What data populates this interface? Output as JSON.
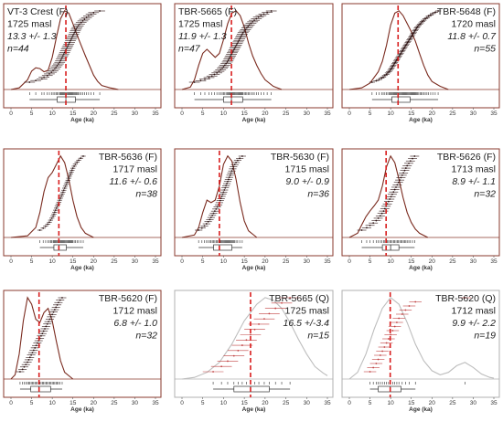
{
  "chart_data": {
    "type": "scatter",
    "xlabel": "Age (ka)",
    "x_ticks": [
      0,
      5,
      10,
      15,
      20,
      25,
      30,
      35
    ],
    "xlim": [
      0,
      35
    ],
    "panels": [
      {
        "sample": "VT-3 Crest (F)",
        "elevation": "1725 masl",
        "age": "13.3 +/- 1.3",
        "n": "n=44",
        "mean": 13.3,
        "curve": [
          [
            0,
            0
          ],
          [
            2,
            0.02
          ],
          [
            4,
            0.12
          ],
          [
            5,
            0.23
          ],
          [
            6,
            0.27
          ],
          [
            7,
            0.26
          ],
          [
            8,
            0.22
          ],
          [
            9,
            0.24
          ],
          [
            10,
            0.4
          ],
          [
            11,
            0.65
          ],
          [
            12,
            0.88
          ],
          [
            13,
            0.98
          ],
          [
            14,
            0.95
          ],
          [
            15,
            0.82
          ],
          [
            16,
            0.68
          ],
          [
            17,
            0.55
          ],
          [
            18,
            0.42
          ],
          [
            19,
            0.3
          ],
          [
            20,
            0.18
          ],
          [
            21,
            0.1
          ],
          [
            22,
            0.05
          ],
          [
            24,
            0.02
          ],
          [
            26,
            0
          ]
        ],
        "ages": [
          4.5,
          6.0,
          7.5,
          8.0,
          8.8,
          9.3,
          9.8,
          10.2,
          10.6,
          10.9,
          11.2,
          11.5,
          11.8,
          12.0,
          12.2,
          12.4,
          12.6,
          12.8,
          13.0,
          13.2,
          13.4,
          13.6,
          13.8,
          14.0,
          14.2,
          14.4,
          14.6,
          14.8,
          15.0,
          15.2,
          15.4,
          15.6,
          15.8,
          16.0,
          16.3,
          16.6,
          17.0,
          17.4,
          17.8,
          18.3,
          18.8,
          19.4,
          20.0,
          21.5
        ],
        "err": 1.3,
        "box": [
          11.2,
          13.3,
          15.6
        ],
        "whisk": [
          4.5,
          21.5
        ]
      },
      {
        "sample": "TBR-5665 (F)",
        "elevation": "1725 masl",
        "age": "11.9 +/- 1.3",
        "n": "n=47",
        "mean": 11.9,
        "curve": [
          [
            0,
            0
          ],
          [
            2,
            0.03
          ],
          [
            3,
            0.12
          ],
          [
            4,
            0.3
          ],
          [
            5,
            0.45
          ],
          [
            6,
            0.5
          ],
          [
            7,
            0.45
          ],
          [
            8,
            0.4
          ],
          [
            9,
            0.45
          ],
          [
            10,
            0.62
          ],
          [
            11,
            0.82
          ],
          [
            12,
            0.95
          ],
          [
            13,
            0.98
          ],
          [
            14,
            0.92
          ],
          [
            15,
            0.78
          ],
          [
            16,
            0.58
          ],
          [
            17,
            0.42
          ],
          [
            18,
            0.3
          ],
          [
            19,
            0.2
          ],
          [
            20,
            0.12
          ],
          [
            22,
            0.04
          ],
          [
            24,
            0
          ]
        ],
        "ages": [
          3.0,
          4.5,
          5.5,
          6.5,
          7.2,
          7.8,
          8.4,
          8.9,
          9.3,
          9.7,
          10.0,
          10.3,
          10.6,
          10.9,
          11.1,
          11.3,
          11.5,
          11.7,
          11.9,
          12.1,
          12.3,
          12.5,
          12.7,
          12.9,
          13.1,
          13.3,
          13.5,
          13.7,
          13.9,
          14.1,
          14.3,
          14.5,
          14.7,
          15.0,
          15.3,
          15.6,
          15.9,
          16.2,
          16.6,
          17.0,
          17.4,
          17.9,
          18.4,
          19.0,
          19.7,
          20.5,
          21.5
        ],
        "err": 1.3,
        "box": [
          10.0,
          11.9,
          14.6
        ],
        "whisk": [
          3.0,
          21.5
        ]
      },
      {
        "sample": "TBR-5648 (F)",
        "elevation": "1720 masl",
        "age": "11.8 +/- 0.7",
        "n": "n=55",
        "mean": 11.8,
        "curve": [
          [
            0,
            0
          ],
          [
            3,
            0.02
          ],
          [
            5,
            0.08
          ],
          [
            7,
            0.22
          ],
          [
            8,
            0.35
          ],
          [
            9,
            0.55
          ],
          [
            10,
            0.8
          ],
          [
            11,
            0.95
          ],
          [
            12,
            0.98
          ],
          [
            13,
            0.92
          ],
          [
            14,
            0.82
          ],
          [
            15,
            0.72
          ],
          [
            16,
            0.6
          ],
          [
            17,
            0.45
          ],
          [
            18,
            0.3
          ],
          [
            19,
            0.18
          ],
          [
            20,
            0.1
          ],
          [
            22,
            0.04
          ],
          [
            24,
            0
          ]
        ],
        "ages": [
          5.5,
          6.5,
          7.2,
          7.8,
          8.2,
          8.6,
          9.0,
          9.3,
          9.6,
          9.9,
          10.1,
          10.3,
          10.5,
          10.7,
          10.9,
          11.1,
          11.3,
          11.5,
          11.7,
          11.9,
          12.1,
          12.3,
          12.5,
          12.7,
          12.9,
          13.1,
          13.3,
          13.5,
          13.7,
          13.9,
          14.1,
          14.3,
          14.5,
          14.7,
          14.9,
          15.1,
          15.3,
          15.5,
          15.7,
          15.9,
          16.1,
          16.3,
          16.5,
          16.8,
          17.1,
          17.4,
          17.7,
          18.0,
          18.4,
          18.8,
          19.2,
          19.7,
          20.2,
          20.8,
          21.5
        ],
        "err": 0.7,
        "box": [
          10.3,
          11.8,
          14.7
        ],
        "whisk": [
          5.5,
          21.5
        ]
      },
      {
        "sample": "TBR-5636 (F)",
        "elevation": "1717 masl",
        "age": "11.6 +/- 0.6",
        "n": "n=38",
        "mean": 11.6,
        "curve": [
          [
            0,
            0
          ],
          [
            4,
            0.02
          ],
          [
            6,
            0.12
          ],
          [
            7,
            0.3
          ],
          [
            8,
            0.55
          ],
          [
            9,
            0.72
          ],
          [
            10,
            0.78
          ],
          [
            11,
            0.88
          ],
          [
            12,
            0.98
          ],
          [
            13,
            0.9
          ],
          [
            14,
            0.7
          ],
          [
            15,
            0.45
          ],
          [
            16,
            0.25
          ],
          [
            17,
            0.12
          ],
          [
            18,
            0.05
          ],
          [
            20,
            0
          ]
        ],
        "ages": [
          7.0,
          7.8,
          8.4,
          8.9,
          9.3,
          9.6,
          9.9,
          10.2,
          10.4,
          10.6,
          10.8,
          11.0,
          11.2,
          11.4,
          11.6,
          11.8,
          12.0,
          12.2,
          12.4,
          12.6,
          12.8,
          13.0,
          13.2,
          13.4,
          13.6,
          13.8,
          14.0,
          14.2,
          14.4,
          14.6,
          14.8,
          15.0,
          15.3,
          15.6,
          16.0,
          16.4,
          16.9,
          17.5
        ],
        "err": 0.6,
        "box": [
          10.4,
          11.6,
          13.4
        ],
        "whisk": [
          7.0,
          17.5
        ]
      },
      {
        "sample": "TBR-5630 (F)",
        "elevation": "1715 masl",
        "age": "9.0 +/- 0.9",
        "n": "n=36",
        "mean": 9.0,
        "curve": [
          [
            0,
            0
          ],
          [
            3,
            0.03
          ],
          [
            4,
            0.12
          ],
          [
            5,
            0.3
          ],
          [
            6,
            0.45
          ],
          [
            7,
            0.42
          ],
          [
            8,
            0.45
          ],
          [
            9,
            0.62
          ],
          [
            10,
            0.88
          ],
          [
            11,
            0.98
          ],
          [
            12,
            0.92
          ],
          [
            13,
            0.7
          ],
          [
            14,
            0.42
          ],
          [
            15,
            0.2
          ],
          [
            16,
            0.08
          ],
          [
            18,
            0
          ]
        ],
        "ages": [
          4.0,
          4.8,
          5.4,
          5.9,
          6.3,
          6.7,
          7.0,
          7.3,
          7.6,
          7.9,
          8.2,
          8.5,
          8.8,
          9.0,
          9.2,
          9.4,
          9.6,
          9.8,
          10.0,
          10.2,
          10.4,
          10.6,
          10.8,
          11.0,
          11.2,
          11.4,
          11.6,
          11.8,
          12.0,
          12.2,
          12.4,
          12.7,
          13.0,
          13.4,
          13.9,
          14.5
        ],
        "err": 0.9,
        "box": [
          7.6,
          9.0,
          12.0
        ],
        "whisk": [
          4.0,
          14.5
        ]
      },
      {
        "sample": "TBR-5626 (F)",
        "elevation": "1713 masl",
        "age": "8.9 +/- 1.1",
        "n": "n=32",
        "mean": 8.9,
        "curve": [
          [
            0,
            0
          ],
          [
            2,
            0.05
          ],
          [
            3,
            0.15
          ],
          [
            4,
            0.25
          ],
          [
            5,
            0.32
          ],
          [
            6,
            0.38
          ],
          [
            7,
            0.45
          ],
          [
            8,
            0.62
          ],
          [
            9,
            0.85
          ],
          [
            10,
            0.98
          ],
          [
            11,
            0.9
          ],
          [
            12,
            0.7
          ],
          [
            13,
            0.48
          ],
          [
            14,
            0.3
          ],
          [
            15,
            0.18
          ],
          [
            16,
            0.1
          ],
          [
            17,
            0.05
          ],
          [
            19,
            0
          ]
        ],
        "ages": [
          3.0,
          4.2,
          5.0,
          5.8,
          6.5,
          7.0,
          7.5,
          7.9,
          8.3,
          8.6,
          8.9,
          9.2,
          9.5,
          9.8,
          10.1,
          10.4,
          10.7,
          11.0,
          11.3,
          11.6,
          11.9,
          12.2,
          12.5,
          12.8,
          13.1,
          13.4,
          13.7,
          14.0,
          14.4,
          14.8,
          15.3,
          15.8
        ],
        "err": 1.1,
        "box": [
          8.0,
          10.0,
          12.0
        ],
        "whisk": [
          3.0,
          15.8
        ]
      },
      {
        "sample": "TBR-5620 (F)",
        "elevation": "1712 masl",
        "age": "6.8 +/- 1.0",
        "n": "n=32",
        "mean": 6.8,
        "curve": [
          [
            0,
            0
          ],
          [
            1,
            0.05
          ],
          [
            2,
            0.3
          ],
          [
            3,
            0.7
          ],
          [
            4,
            0.98
          ],
          [
            5,
            0.9
          ],
          [
            6,
            0.72
          ],
          [
            7,
            0.68
          ],
          [
            8,
            0.8
          ],
          [
            9,
            0.85
          ],
          [
            10,
            0.7
          ],
          [
            11,
            0.45
          ],
          [
            12,
            0.22
          ],
          [
            13,
            0.08
          ],
          [
            15,
            0
          ]
        ],
        "ages": [
          2.2,
          2.8,
          3.2,
          3.6,
          4.0,
          4.3,
          4.6,
          4.9,
          5.2,
          5.5,
          5.8,
          6.1,
          6.4,
          6.7,
          7.0,
          7.3,
          7.6,
          7.9,
          8.2,
          8.5,
          8.8,
          9.1,
          9.4,
          9.7,
          10.0,
          10.3,
          10.6,
          10.9,
          11.2,
          11.5,
          11.9,
          12.4
        ],
        "err": 1.0,
        "box": [
          4.8,
          6.8,
          9.6
        ],
        "whisk": [
          2.2,
          12.4
        ]
      },
      {
        "sample": "TBR-5665 (Q)",
        "elevation": "1725 masl",
        "age": "16.5 +/-3.4",
        "n": "n=15",
        "mean": 16.5,
        "curve": [
          [
            0,
            0
          ],
          [
            3,
            0.02
          ],
          [
            6,
            0.08
          ],
          [
            9,
            0.2
          ],
          [
            12,
            0.42
          ],
          [
            15,
            0.7
          ],
          [
            18,
            0.9
          ],
          [
            20,
            0.98
          ],
          [
            22,
            0.95
          ],
          [
            24,
            0.85
          ],
          [
            26,
            0.68
          ],
          [
            28,
            0.48
          ],
          [
            30,
            0.3
          ],
          [
            32,
            0.15
          ],
          [
            34,
            0.07
          ],
          [
            35,
            0.04
          ]
        ],
        "ages": [
          7.5,
          9.5,
          11.0,
          12.5,
          13.5,
          14.5,
          15.5,
          16.5,
          17.5,
          18.5,
          19.8,
          21.0,
          22.5,
          24.0,
          26.0
        ],
        "err": 2.5,
        "box": [
          12.5,
          16.5,
          21.0
        ],
        "whisk": [
          7.5,
          26.0
        ]
      },
      {
        "sample": "TBR-5620 (Q)",
        "elevation": "1712 masl",
        "age": "9.9 +/- 2.2",
        "n": "n=19",
        "mean": 9.9,
        "curve": [
          [
            0,
            0
          ],
          [
            2,
            0.08
          ],
          [
            4,
            0.3
          ],
          [
            6,
            0.6
          ],
          [
            8,
            0.85
          ],
          [
            10,
            0.98
          ],
          [
            12,
            0.9
          ],
          [
            14,
            0.68
          ],
          [
            16,
            0.42
          ],
          [
            18,
            0.22
          ],
          [
            20,
            0.1
          ],
          [
            22,
            0.05
          ],
          [
            24,
            0.08
          ],
          [
            26,
            0.16
          ],
          [
            28,
            0.2
          ],
          [
            30,
            0.14
          ],
          [
            32,
            0.06
          ],
          [
            34,
            0.02
          ],
          [
            35,
            0.01
          ]
        ],
        "ages": [
          5.0,
          5.8,
          6.5,
          7.0,
          7.5,
          8.0,
          8.5,
          9.0,
          9.5,
          10.0,
          10.5,
          11.0,
          11.5,
          12.0,
          12.8,
          13.6,
          14.5,
          16.0,
          28.0
        ],
        "err": 1.5,
        "box": [
          7.0,
          9.9,
          12.5
        ],
        "whisk": [
          5.0,
          16.0
        ]
      }
    ]
  },
  "colors": {
    "curve_f": "#7a2a1e",
    "curve_q": "#bdbdbd",
    "mean_line": "#d81e1e",
    "points": "#2a1010",
    "frame": "#8a3a2e",
    "text": "#202020"
  }
}
